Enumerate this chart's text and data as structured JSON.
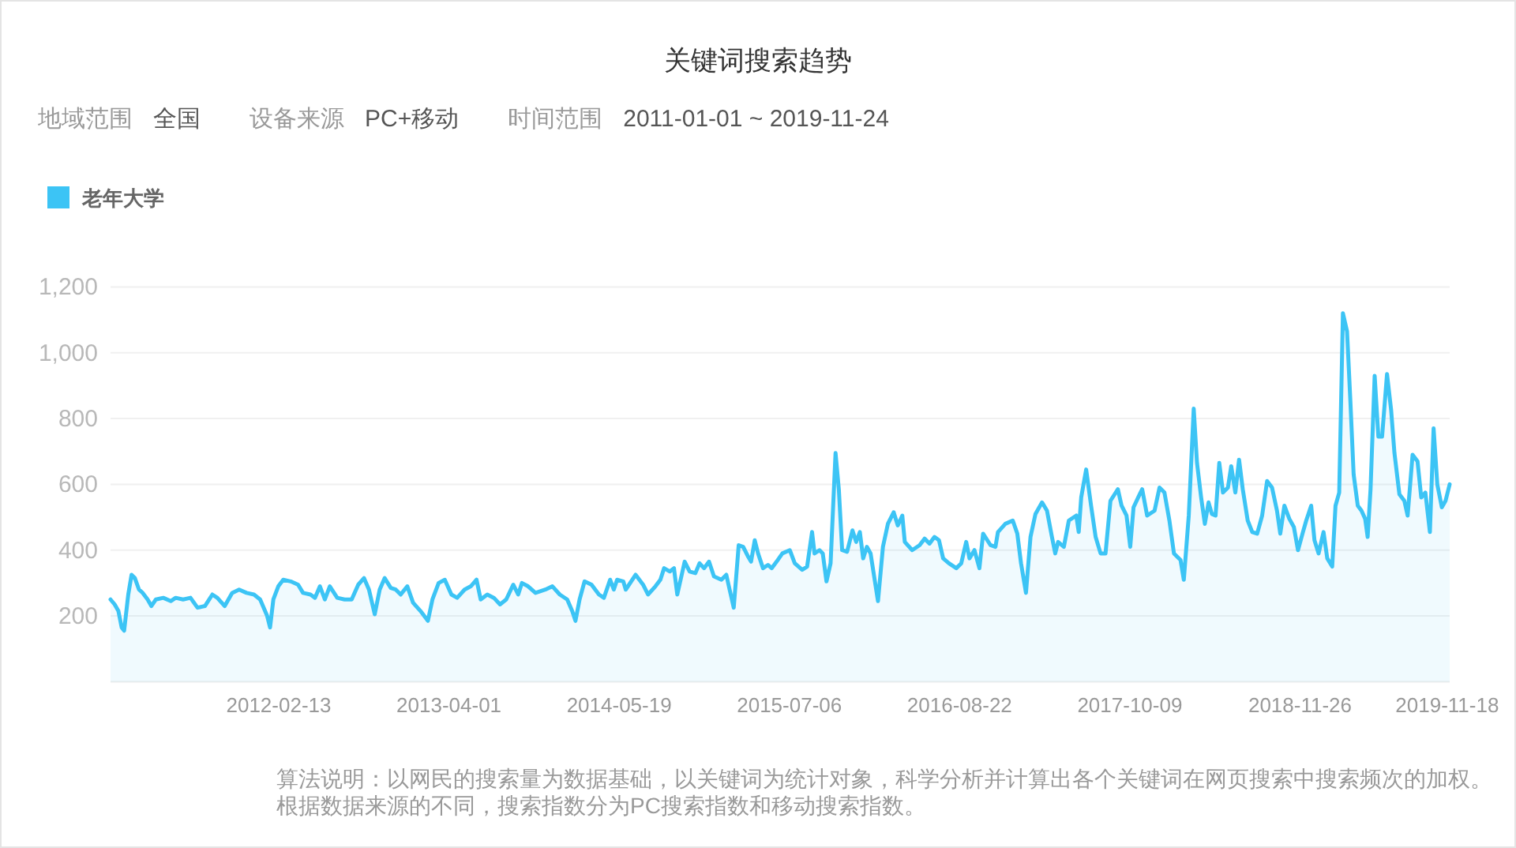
{
  "chart_data": {
    "type": "area",
    "title": "关键词搜索趋势",
    "annotations": [
      "地域范围",
      "全国",
      "设备来源",
      "PC+移动",
      "时间范围",
      "2011-01-01 ~ 2019-11-24",
      "算法说明：以网民的搜索量为数据基础，以关键词为统计对象，科学分析并计算出各个关键词在网页搜索中搜索频次的加权。根据数据来源的不同，搜索指数分为PC搜索指数和移动搜索指数。"
    ],
    "x": [
      "2011-01-01",
      "2011-01-11",
      "2011-01-20",
      "2011-01-28",
      "2011-02-03",
      "2011-02-13",
      "2011-02-21",
      "2011-03-01",
      "2011-03-11",
      "2011-03-20",
      "2011-04-01",
      "2011-04-10",
      "2011-04-21",
      "2011-05-09",
      "2011-05-27",
      "2011-06-08",
      "2011-06-26",
      "2011-07-14",
      "2011-07-31",
      "2011-08-18",
      "2011-09-05",
      "2011-09-17",
      "2011-10-05",
      "2011-10-23",
      "2011-11-09",
      "2011-11-27",
      "2011-12-15",
      "2011-12-30",
      "2012-01-16",
      "2012-01-23",
      "2012-01-31",
      "2012-02-12",
      "2012-02-24",
      "2012-03-13",
      "2012-03-31",
      "2012-04-12",
      "2012-04-30",
      "2012-05-11",
      "2012-05-23",
      "2012-06-04",
      "2012-06-16",
      "2012-07-04",
      "2012-07-22",
      "2012-08-08",
      "2012-08-24",
      "2012-09-07",
      "2012-09-19",
      "2012-10-03",
      "2012-10-15",
      "2012-10-27",
      "2012-11-11",
      "2012-11-23",
      "2012-12-05",
      "2012-12-21",
      "2013-01-04",
      "2013-01-22",
      "2013-02-09",
      "2013-02-20",
      "2013-03-07",
      "2013-03-22",
      "2013-04-07",
      "2013-04-21",
      "2013-05-09",
      "2013-05-24",
      "2013-06-07",
      "2013-06-17",
      "2013-07-03",
      "2013-07-19",
      "2013-08-03",
      "2013-08-18",
      "2013-09-04",
      "2013-09-16",
      "2013-09-25",
      "2013-10-10",
      "2013-10-28",
      "2013-11-21",
      "2013-12-08",
      "2013-12-26",
      "2014-01-13",
      "2014-01-25",
      "2014-02-02",
      "2014-02-12",
      "2014-02-24",
      "2014-03-13",
      "2014-03-31",
      "2014-04-12",
      "2014-04-27",
      "2014-05-06",
      "2014-05-14",
      "2014-05-29",
      "2014-06-04",
      "2014-06-28",
      "2014-07-16",
      "2014-07-28",
      "2014-08-15",
      "2014-08-27",
      "2014-09-05",
      "2014-09-19",
      "2014-09-29",
      "2014-10-07",
      "2014-10-25",
      "2014-11-06",
      "2014-11-20",
      "2014-11-30",
      "2014-12-11",
      "2014-12-23",
      "2015-01-04",
      "2015-01-22",
      "2015-02-03",
      "2015-02-11",
      "2015-02-21",
      "2015-03-05",
      "2015-03-16",
      "2015-03-28",
      "2015-04-04",
      "2015-04-13",
      "2015-04-21",
      "2015-05-03",
      "2015-05-15",
      "2015-05-24",
      "2015-06-05",
      "2015-06-19",
      "2015-07-07",
      "2015-07-19",
      "2015-08-06",
      "2015-08-18",
      "2015-08-30",
      "2015-09-05",
      "2015-09-17",
      "2015-09-25",
      "2015-10-04",
      "2015-10-14",
      "2015-10-26",
      "2015-11-03",
      "2015-11-11",
      "2015-11-23",
      "2015-12-06",
      "2015-12-15",
      "2015-12-24",
      "2016-01-01",
      "2016-01-10",
      "2016-01-19",
      "2016-02-06",
      "2016-02-18",
      "2016-03-01",
      "2016-03-15",
      "2016-03-25",
      "2016-04-05",
      "2016-04-11",
      "2016-04-29",
      "2016-05-17",
      "2016-05-29",
      "2016-06-10",
      "2016-06-22",
      "2016-07-03",
      "2016-07-13",
      "2016-07-27",
      "2016-08-14",
      "2016-08-26",
      "2016-09-07",
      "2016-09-15",
      "2016-09-27",
      "2016-10-09",
      "2016-10-18",
      "2016-11-05",
      "2016-11-17",
      "2016-11-23",
      "2016-12-11",
      "2016-12-29",
      "2017-01-09",
      "2017-01-18",
      "2017-01-30",
      "2017-02-10",
      "2017-02-22",
      "2017-03-10",
      "2017-03-22",
      "2017-04-03",
      "2017-04-11",
      "2017-04-18",
      "2017-05-02",
      "2017-05-14",
      "2017-06-01",
      "2017-06-07",
      "2017-06-13",
      "2017-06-25",
      "2017-07-07",
      "2017-07-18",
      "2017-07-30",
      "2017-08-11",
      "2017-08-23",
      "2017-09-10",
      "2017-09-19",
      "2017-10-01",
      "2017-10-10",
      "2017-10-18",
      "2017-11-02",
      "2017-11-08",
      "2017-11-20",
      "2017-12-08",
      "2017-12-20",
      "2018-01-01",
      "2018-01-13",
      "2018-01-24",
      "2018-02-09",
      "2018-02-17",
      "2018-03-01",
      "2018-03-13",
      "2018-03-21",
      "2018-03-31",
      "2018-04-09",
      "2018-04-18",
      "2018-04-26",
      "2018-05-05",
      "2018-05-14",
      "2018-05-23",
      "2018-06-04",
      "2018-06-12",
      "2018-06-22",
      "2018-07-01",
      "2018-07-10",
      "2018-07-22",
      "2018-08-02",
      "2018-08-14",
      "2018-08-26",
      "2018-09-07",
      "2018-09-19",
      "2018-10-01",
      "2018-10-09",
      "2018-10-19",
      "2018-10-31",
      "2018-11-11",
      "2018-11-21",
      "2018-12-03",
      "2018-12-11",
      "2018-12-23",
      "2018-12-31",
      "2019-01-10",
      "2019-01-22",
      "2019-01-31",
      "2019-02-12",
      "2019-02-20",
      "2019-03-01",
      "2019-03-10",
      "2019-03-20",
      "2019-03-28",
      "2019-04-05",
      "2019-04-15",
      "2019-04-24",
      "2019-05-03",
      "2019-05-09",
      "2019-05-16",
      "2019-05-26",
      "2019-06-04",
      "2019-06-13",
      "2019-06-25",
      "2019-07-05",
      "2019-07-13",
      "2019-07-25",
      "2019-08-06",
      "2019-08-14",
      "2019-08-26",
      "2019-09-07",
      "2019-09-16",
      "2019-09-26",
      "2019-10-07",
      "2019-10-16",
      "2019-10-25",
      "2019-11-05",
      "2019-11-14",
      "2019-11-24"
    ],
    "series": [
      {
        "name": "老年大学",
        "color": "#3cc4f5",
        "values": [
          250,
          235,
          215,
          165,
          155,
          265,
          325,
          315,
          280,
          270,
          250,
          230,
          250,
          255,
          245,
          255,
          250,
          255,
          225,
          230,
          265,
          255,
          230,
          270,
          280,
          270,
          265,
          250,
          200,
          165,
          250,
          290,
          310,
          305,
          295,
          270,
          265,
          255,
          290,
          250,
          290,
          255,
          250,
          250,
          295,
          315,
          280,
          205,
          280,
          315,
          285,
          280,
          265,
          290,
          240,
          215,
          185,
          250,
          300,
          310,
          265,
          255,
          280,
          290,
          310,
          250,
          265,
          255,
          235,
          250,
          295,
          265,
          300,
          290,
          270,
          280,
          290,
          265,
          250,
          215,
          185,
          250,
          305,
          295,
          265,
          255,
          310,
          280,
          310,
          305,
          280,
          325,
          295,
          265,
          290,
          310,
          345,
          335,
          345,
          265,
          365,
          335,
          330,
          360,
          345,
          365,
          320,
          310,
          325,
          280,
          225,
          415,
          410,
          380,
          365,
          430,
          390,
          345,
          355,
          345,
          365,
          390,
          400,
          360,
          340,
          350,
          455,
          390,
          400,
          390,
          305,
          360,
          695,
          585,
          400,
          395,
          460,
          425,
          455,
          375,
          410,
          390,
          245,
          410,
          480,
          515,
          475,
          505,
          425,
          400,
          415,
          435,
          420,
          440,
          430,
          375,
          360,
          345,
          360,
          425,
          375,
          400,
          345,
          450,
          415,
          410,
          455,
          480,
          490,
          450,
          360,
          270,
          440,
          510,
          545,
          520,
          440,
          390,
          425,
          410,
          490,
          505,
          455,
          560,
          645,
          535,
          440,
          390,
          390,
          550,
          585,
          535,
          505,
          410,
          530,
          570,
          585,
          505,
          520,
          590,
          575,
          490,
          390,
          370,
          310,
          505,
          830,
          665,
          560,
          480,
          545,
          510,
          505,
          665,
          575,
          590,
          655,
          575,
          675,
          585,
          490,
          455,
          450,
          505,
          610,
          590,
          520,
          450,
          535,
          495,
          470,
          400,
          455,
          490,
          535,
          430,
          390,
          455,
          375,
          350,
          535,
          575,
          1120,
          1065,
          855,
          630,
          535,
          520,
          495,
          440,
          585,
          930,
          745,
          745,
          935,
          825,
          695,
          570,
          550,
          505,
          690,
          670,
          560,
          575,
          455,
          770,
          600,
          530,
          550,
          600
        ]
      }
    ],
    "xlim": [
      "2011-01-01",
      "2019-11-24"
    ],
    "xticks": [
      "2012-02-13",
      "2013-04-01",
      "2014-05-19",
      "2015-07-06",
      "2016-08-22",
      "2017-10-09",
      "2018-11-26",
      "2019-11-18"
    ],
    "ylim": [
      0,
      1200
    ],
    "yticks": [
      200,
      400,
      600,
      800,
      {
        "value": 1000,
        "label": "1,000"
      },
      {
        "value": 1200,
        "label": "1,200"
      }
    ],
    "grid": "y",
    "legend": "top left"
  }
}
